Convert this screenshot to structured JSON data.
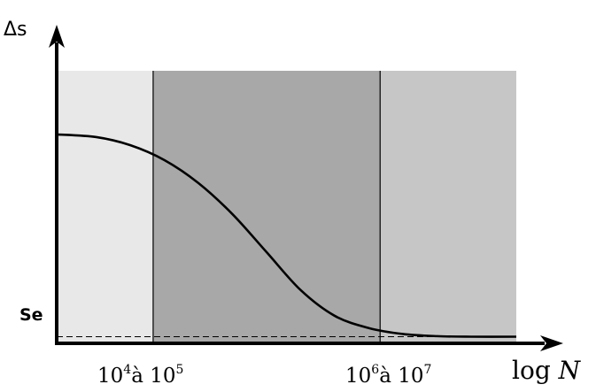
{
  "chart_data": {
    "type": "line",
    "ylabel": "Δs",
    "xlabel_main": "log",
    "xlabel_var": "N",
    "endurance_label": "Se",
    "x_ticks": [
      {
        "x": 4.5,
        "base": "10",
        "exp1": "4",
        "mid": "à 10",
        "exp2": "5"
      },
      {
        "x": 6.5,
        "base": "10",
        "exp1": "6",
        "mid": "à 10",
        "exp2": "7"
      }
    ],
    "xlim": [
      3.65,
      7.7
    ],
    "ylim": [
      0,
      1.0
    ],
    "regions": [
      {
        "from": 3.65,
        "to": 4.5,
        "color": "#e8e8e8"
      },
      {
        "from": 4.5,
        "to": 6.5,
        "color": "#a8a8a8"
      },
      {
        "from": 6.5,
        "to": 7.7,
        "color": "#c6c6c6"
      }
    ],
    "region_top": 1.0,
    "series": [
      {
        "x": [
          3.65,
          4.0,
          4.3,
          4.6,
          4.9,
          5.2,
          5.5,
          5.8,
          6.1,
          6.4,
          6.7,
          7.0,
          7.3,
          7.7
        ],
        "values": [
          0.765,
          0.755,
          0.725,
          0.67,
          0.585,
          0.47,
          0.33,
          0.19,
          0.095,
          0.05,
          0.028,
          0.02,
          0.018,
          0.018
        ]
      }
    ],
    "endurance_value": 0.018,
    "grid": false,
    "colors": {
      "axis": "#000000",
      "curve": "#000000"
    }
  }
}
